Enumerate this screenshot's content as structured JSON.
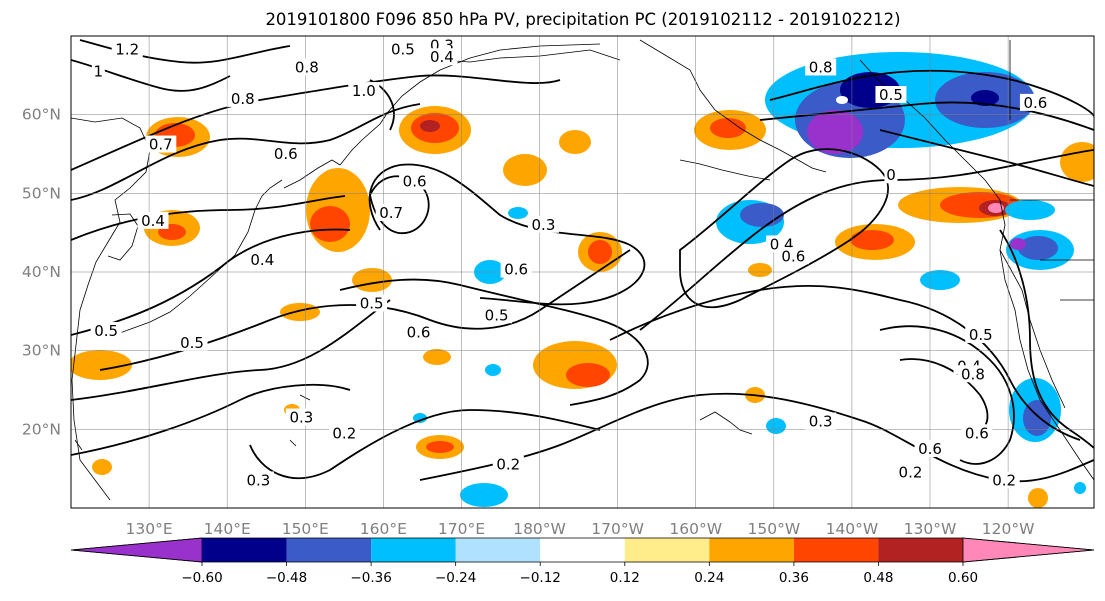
{
  "title": "2019101800 F096 850 hPa PV, precipitation PC (2019102112 - 2019102212)",
  "map": {
    "lon_range": [
      120,
      251
    ],
    "lat_range": [
      10,
      70
    ],
    "x_ticks": [
      {
        "lon": 130,
        "label": "130°E"
      },
      {
        "lon": 140,
        "label": "140°E"
      },
      {
        "lon": 150,
        "label": "150°E"
      },
      {
        "lon": 160,
        "label": "160°E"
      },
      {
        "lon": 170,
        "label": "170°E"
      },
      {
        "lon": 180,
        "label": "180°W"
      },
      {
        "lon": 190,
        "label": "170°W"
      },
      {
        "lon": 200,
        "label": "160°W"
      },
      {
        "lon": 210,
        "label": "150°W"
      },
      {
        "lon": 220,
        "label": "140°W"
      },
      {
        "lon": 230,
        "label": "130°W"
      },
      {
        "lon": 240,
        "label": "120°W"
      }
    ],
    "y_ticks": [
      {
        "lat": 20,
        "label": "20°N"
      },
      {
        "lat": 30,
        "label": "30°N"
      },
      {
        "lat": 40,
        "label": "40°N"
      },
      {
        "lat": 50,
        "label": "50°N"
      },
      {
        "lat": 60,
        "label": "60°N"
      }
    ],
    "grid": true,
    "contour_labels": [
      {
        "text": "1.2",
        "lon": 127.2,
        "lat": 68.3
      },
      {
        "text": "1",
        "lon": 123.5,
        "lat": 65.5
      },
      {
        "text": "0.8",
        "lon": 142,
        "lat": 62
      },
      {
        "text": "0.7",
        "lon": 131.5,
        "lat": 56.2
      },
      {
        "text": "0.6",
        "lon": 147.5,
        "lat": 55
      },
      {
        "text": "0.8",
        "lon": 150.2,
        "lat": 66
      },
      {
        "text": "0.5",
        "lon": 162.5,
        "lat": 68.3
      },
      {
        "text": "0.3",
        "lon": 167.5,
        "lat": 68.8
      },
      {
        "text": "0.4",
        "lon": 167.5,
        "lat": 67.3
      },
      {
        "text": "1.0",
        "lon": 157.5,
        "lat": 63
      },
      {
        "text": "0.6",
        "lon": 164,
        "lat": 51.5
      },
      {
        "text": "0.7",
        "lon": 161,
        "lat": 47.5
      },
      {
        "text": "0.4",
        "lon": 130.5,
        "lat": 46.5
      },
      {
        "text": "0.4",
        "lon": 144.5,
        "lat": 41.5
      },
      {
        "text": "0.5",
        "lon": 124.5,
        "lat": 32.5
      },
      {
        "text": "0.5",
        "lon": 135.5,
        "lat": 31
      },
      {
        "text": "0.5",
        "lon": 158.5,
        "lat": 36
      },
      {
        "text": "0.3",
        "lon": 180.5,
        "lat": 46
      },
      {
        "text": "0.6",
        "lon": 177,
        "lat": 40.3
      },
      {
        "text": "0.6",
        "lon": 164.5,
        "lat": 32.3
      },
      {
        "text": "0.5",
        "lon": 174.5,
        "lat": 34.5
      },
      {
        "text": "0.3",
        "lon": 149.5,
        "lat": 21.5
      },
      {
        "text": "0.2",
        "lon": 155,
        "lat": 19.5
      },
      {
        "text": "0.3",
        "lon": 144,
        "lat": 13.5
      },
      {
        "text": "0.2",
        "lon": 176,
        "lat": 15.5
      },
      {
        "text": "0.4",
        "lon": 211,
        "lat": 43.5
      },
      {
        "text": "0.6",
        "lon": 212.5,
        "lat": 42
      },
      {
        "text": "0.3",
        "lon": 216,
        "lat": 21
      },
      {
        "text": "0.2",
        "lon": 227.5,
        "lat": 14.5
      },
      {
        "text": "0.6",
        "lon": 230,
        "lat": 17.5
      },
      {
        "text": "0.2",
        "lon": 239.5,
        "lat": 13.5
      },
      {
        "text": "0.4",
        "lon": 235,
        "lat": 28
      },
      {
        "text": "0.5",
        "lon": 236.5,
        "lat": 32
      },
      {
        "text": "0.8",
        "lon": 216,
        "lat": 66
      },
      {
        "text": "0.5",
        "lon": 225,
        "lat": 62.5
      },
      {
        "text": "0.6",
        "lon": 243.5,
        "lat": 61.5
      },
      {
        "text": "0.8",
        "lon": 235.5,
        "lat": 27
      },
      {
        "text": "0.6",
        "lon": 236,
        "lat": 19.5
      },
      {
        "text": "0",
        "lon": 225,
        "lat": 52.3
      }
    ]
  },
  "colorbar": {
    "colors": [
      "#9932cc",
      "#00008b",
      "#3a5bc8",
      "#00bfff",
      "#b0e2ff",
      "#ffffff",
      "#ffec8b",
      "#ffa500",
      "#ff4500",
      "#b22222",
      "#ff88b8"
    ],
    "tick_labels": [
      "−0.60",
      "−0.48",
      "−0.36",
      "−0.24",
      "−0.12",
      "0.12",
      "0.24",
      "0.36",
      "0.48",
      "0.60"
    ]
  }
}
